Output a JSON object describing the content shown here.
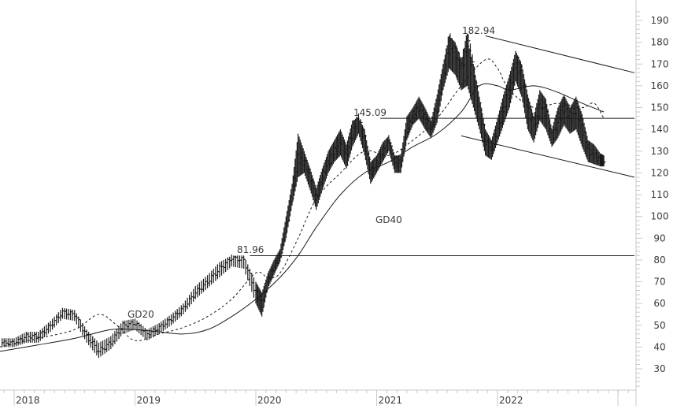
{
  "chart_data": {
    "type": "line",
    "title": "",
    "xlabel": "",
    "ylabel": "",
    "ylim": [
      20,
      195
    ],
    "grid": false,
    "legend_position": "none",
    "price_style": "ohlc-bars",
    "y_axis_position": "right",
    "y_ticks": [
      30,
      40,
      50,
      60,
      70,
      80,
      90,
      100,
      110,
      120,
      130,
      140,
      150,
      160,
      170,
      180,
      190
    ],
    "x_ticks": [
      "2018",
      "2019",
      "2020",
      "2021",
      "2022"
    ],
    "x_tick_positions": [
      2018.0,
      2019.0,
      2020.0,
      2021.0,
      2022.0
    ],
    "xlim": [
      2017.88,
      2022.95
    ],
    "series": [
      {
        "name": "Price",
        "style": "bars",
        "x": [
          2017.9,
          2018.0,
          2018.1,
          2018.2,
          2018.3,
          2018.4,
          2018.5,
          2018.6,
          2018.7,
          2018.8,
          2018.9,
          2019.0,
          2019.1,
          2019.2,
          2019.3,
          2019.4,
          2019.5,
          2019.6,
          2019.7,
          2019.8,
          2019.9,
          2020.0,
          2020.05,
          2020.1,
          2020.15,
          2020.2,
          2020.25,
          2020.3,
          2020.35,
          2020.4,
          2020.45,
          2020.5,
          2020.55,
          2020.6,
          2020.65,
          2020.7,
          2020.75,
          2020.8,
          2020.85,
          2020.9,
          2020.95,
          2021.0,
          2021.05,
          2021.1,
          2021.15,
          2021.2,
          2021.25,
          2021.3,
          2021.35,
          2021.4,
          2021.45,
          2021.5,
          2021.55,
          2021.6,
          2021.65,
          2021.7,
          2021.75,
          2021.8,
          2021.85,
          2021.9,
          2021.95,
          2022.0,
          2022.05,
          2022.1,
          2022.15,
          2022.2,
          2022.25,
          2022.3,
          2022.35,
          2022.4,
          2022.45,
          2022.5,
          2022.55,
          2022.6,
          2022.65,
          2022.7,
          2022.75,
          2022.8,
          2022.85,
          2022.88
        ],
        "values": [
          42,
          42,
          45,
          45,
          50,
          56,
          55,
          45,
          38,
          42,
          50,
          51,
          46,
          49,
          53,
          58,
          65,
          70,
          76,
          81,
          80,
          65,
          60,
          71,
          77,
          82,
          95,
          110,
          128,
          125,
          118,
          108,
          118,
          125,
          130,
          135,
          128,
          140,
          145,
          135,
          120,
          125,
          130,
          135,
          124,
          125,
          140,
          147,
          150,
          145,
          140,
          150,
          165,
          180,
          175,
          168,
          180,
          165,
          150,
          135,
          130,
          140,
          150,
          160,
          172,
          165,
          150,
          140,
          152,
          148,
          135,
          145,
          150,
          145,
          150,
          140,
          130,
          128,
          126,
          125
        ],
        "highs": [
          44,
          44,
          47,
          47,
          52,
          58,
          57,
          48,
          42,
          45,
          52,
          53,
          48,
          51,
          55,
          60,
          68,
          73,
          79,
          82,
          82,
          70,
          65,
          74,
          80,
          85,
          100,
          115,
          138,
          130,
          122,
          113,
          122,
          130,
          135,
          140,
          133,
          144,
          145,
          140,
          125,
          128,
          134,
          137,
          128,
          128,
          146,
          150,
          155,
          150,
          144,
          156,
          170,
          183,
          180,
          172,
          180,
          170,
          155,
          140,
          135,
          145,
          156,
          165,
          176,
          170,
          156,
          146,
          158,
          154,
          140,
          150,
          156,
          150,
          155,
          147,
          135,
          133,
          129,
          128
        ],
        "lows": [
          40,
          40,
          42,
          42,
          47,
          53,
          52,
          42,
          35,
          39,
          46,
          48,
          43,
          46,
          50,
          55,
          62,
          67,
          72,
          77,
          76,
          60,
          54,
          67,
          73,
          79,
          90,
          105,
          118,
          120,
          112,
          103,
          112,
          120,
          125,
          128,
          122,
          132,
          138,
          128,
          115,
          120,
          125,
          130,
          120,
          120,
          135,
          142,
          145,
          140,
          136,
          143,
          158,
          168,
          165,
          158,
          160,
          150,
          140,
          128,
          126,
          134,
          142,
          150,
          162,
          155,
          140,
          134,
          144,
          140,
          132,
          136,
          142,
          138,
          140,
          132,
          125,
          124,
          123,
          123
        ]
      },
      {
        "name": "GD20",
        "style": "dashed",
        "x": [
          2017.88,
          2018.2,
          2018.5,
          2018.7,
          2018.85,
          2019.0,
          2019.2,
          2019.4,
          2019.6,
          2019.8,
          2020.0,
          2020.1,
          2020.2,
          2020.35,
          2020.5,
          2020.7,
          2020.9,
          2021.1,
          2021.3,
          2021.5,
          2021.7,
          2021.9,
          2022.0,
          2022.1,
          2022.3,
          2022.5,
          2022.7,
          2022.8,
          2022.88
        ],
        "values": [
          40,
          44,
          48,
          55,
          50,
          43,
          46,
          49,
          54,
          62,
          74,
          72,
          74,
          90,
          108,
          120,
          130,
          128,
          135,
          145,
          160,
          172,
          168,
          158,
          150,
          152,
          150,
          152,
          145
        ]
      },
      {
        "name": "GD40",
        "style": "solid",
        "x": [
          2017.88,
          2018.2,
          2018.5,
          2018.8,
          2019.0,
          2019.2,
          2019.4,
          2019.6,
          2019.8,
          2020.0,
          2020.2,
          2020.35,
          2020.5,
          2020.7,
          2020.9,
          2021.1,
          2021.3,
          2021.5,
          2021.7,
          2021.85,
          2022.0,
          2022.1,
          2022.3,
          2022.5,
          2022.7,
          2022.88
        ],
        "values": [
          38,
          41,
          44,
          48,
          48,
          47,
          46,
          48,
          54,
          62,
          72,
          82,
          95,
          110,
          120,
          125,
          132,
          138,
          148,
          160,
          160,
          158,
          160,
          157,
          152,
          148
        ]
      }
    ],
    "annotations": [
      {
        "text": "182.94",
        "x": 2021.9,
        "y": 182.94,
        "line_to_x": 2022.95,
        "line_to_y": 166,
        "kind": "upper-channel-line"
      },
      {
        "text": "145.09",
        "x": 2021.03,
        "y": 145.09,
        "line_to_x": 2022.95,
        "line_to_y": 145.09,
        "kind": "horizontal-resistance"
      },
      {
        "text": "81.96",
        "x": 2019.95,
        "y": 81.96,
        "line_to_x": 2022.95,
        "line_to_y": 81.96,
        "kind": "horizontal-support"
      },
      {
        "text": "GD20",
        "x": 2018.98,
        "y": 54,
        "kind": "label"
      },
      {
        "text": "GD40",
        "x": 2021.0,
        "y": 97,
        "kind": "label"
      }
    ],
    "lower_channel": {
      "x1": 2021.7,
      "y1": 137,
      "x2": 2022.95,
      "y2": 118
    }
  },
  "ui": {
    "price_axis_labels": [
      "190",
      "180",
      "170",
      "160",
      "150",
      "140",
      "130",
      "120",
      "110",
      "100",
      "90",
      "80",
      "70",
      "60",
      "50",
      "40",
      "30"
    ],
    "time_axis_labels": [
      "2018",
      "2019",
      "2020",
      "2021",
      "2022"
    ],
    "annotation_labels": {
      "high_peak": "182.94",
      "mid_resistance": "145.09",
      "low_support": "81.96",
      "gd20": "GD20",
      "gd40": "GD40"
    }
  },
  "colors": {
    "background": "#ffffff",
    "price": "#1a1a1a",
    "ma": "#1a1a1a",
    "axis": "#c8c8c8",
    "text": "#3a3a3a"
  }
}
